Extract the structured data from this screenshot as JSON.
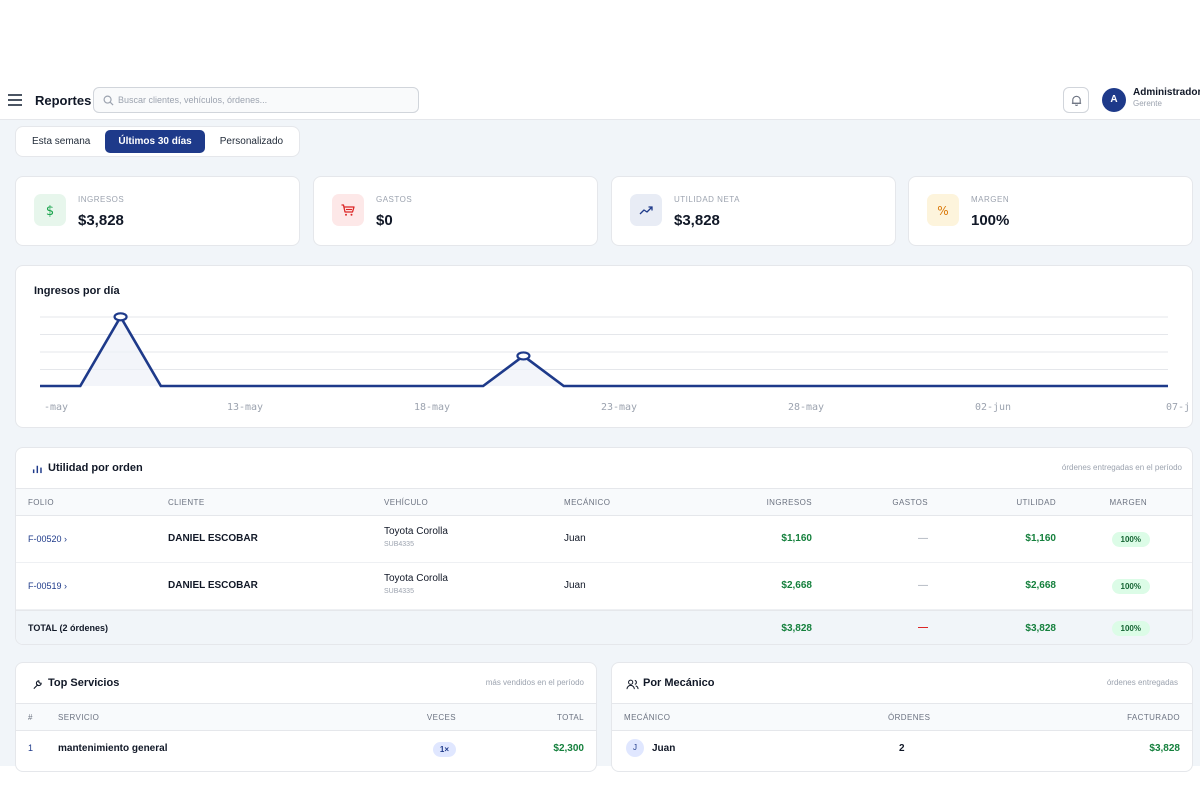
{
  "header": {
    "title": "Reportes",
    "search_placeholder": "Buscar clientes, vehículos, órdenes...",
    "user_initial": "A",
    "user_name": "Administrador",
    "user_role": "Gerente"
  },
  "range_tabs": [
    {
      "label": "Esta semana",
      "active": false
    },
    {
      "label": "Últimos 30 días",
      "active": true
    },
    {
      "label": "Personalizado",
      "active": false
    }
  ],
  "kpis": [
    {
      "label": "INGRESOS",
      "value": "$3,828",
      "icon": "dollar-icon",
      "tint": "#e7f6ec",
      "color": "#16a34a"
    },
    {
      "label": "GASTOS",
      "value": "$0",
      "icon": "cart-icon",
      "tint": "#fde8e8",
      "color": "#dc2626"
    },
    {
      "label": "UTILIDAD NETA",
      "value": "$3,828",
      "icon": "trend-up-icon",
      "tint": "#e8ecf5",
      "color": "#1e3a8a"
    },
    {
      "label": "MARGEN",
      "value": "100%",
      "icon": "percent-icon",
      "tint": "#fdf4dc",
      "color": "#d97706"
    }
  ],
  "chart": {
    "title": "Ingresos por día",
    "line_color": "#1e3a8a"
  },
  "chart_data": {
    "type": "line",
    "title": "Ingresos por día",
    "x_tick_labels": [
      "-may",
      "13-may",
      "18-may",
      "23-may",
      "28-may",
      "02-jun",
      "07-j"
    ],
    "points": [
      {
        "x": "11-may",
        "y": 0
      },
      {
        "x": "12-may",
        "y": 0
      },
      {
        "x": "13-may",
        "y": 2668
      },
      {
        "x": "14-may",
        "y": 0
      },
      {
        "x": "22-may",
        "y": 0
      },
      {
        "x": "23-may",
        "y": 1160
      },
      {
        "x": "24-may",
        "y": 0
      },
      {
        "x": "08-jun",
        "y": 0
      }
    ],
    "ylim": [
      0,
      2700
    ],
    "grid": true
  },
  "orders": {
    "title": "Utilidad por orden",
    "note": "órdenes entregadas en el período",
    "columns": [
      "FOLIO",
      "CLIENTE",
      "VEHÍCULO",
      "MECÁNICO",
      "INGRESOS",
      "GASTOS",
      "UTILIDAD",
      "MARGEN"
    ],
    "rows": [
      {
        "folio": "F-00520 ›",
        "cliente": "DANIEL ESCOBAR",
        "vehiculo": "Toyota Corolla",
        "placa": "SUB4335",
        "mecanico": "Juan",
        "ingresos": "$1,160",
        "gastos": "—",
        "utilidad": "$1,160",
        "margen": "100%"
      },
      {
        "folio": "F-00519 ›",
        "cliente": "DANIEL ESCOBAR",
        "vehiculo": "Toyota Corolla",
        "placa": "SUB4335",
        "mecanico": "Juan",
        "ingresos": "$2,668",
        "gastos": "—",
        "utilidad": "$2,668",
        "margen": "100%"
      }
    ],
    "total": {
      "label": "TOTAL (2 órdenes)",
      "ingresos": "$3,828",
      "gastos": "—",
      "utilidad": "$3,828",
      "margen": "100%"
    }
  },
  "top_services": {
    "title": "Top Servicios",
    "note": "más vendidos en el período",
    "columns": [
      "#",
      "SERVICIO",
      "VECES",
      "TOTAL"
    ],
    "rows": [
      {
        "rank": "1",
        "servicio": "mantenimiento general",
        "veces": "1×",
        "total": "$2,300"
      }
    ]
  },
  "mechanics": {
    "title": "Por Mecánico",
    "note": "órdenes entregadas",
    "columns": [
      "MECÁNICO",
      "ÓRDENES",
      "FACTURADO"
    ],
    "rows": [
      {
        "initial": "J",
        "mecanico": "Juan",
        "ordenes": "2",
        "facturado": "$3,828"
      }
    ]
  }
}
